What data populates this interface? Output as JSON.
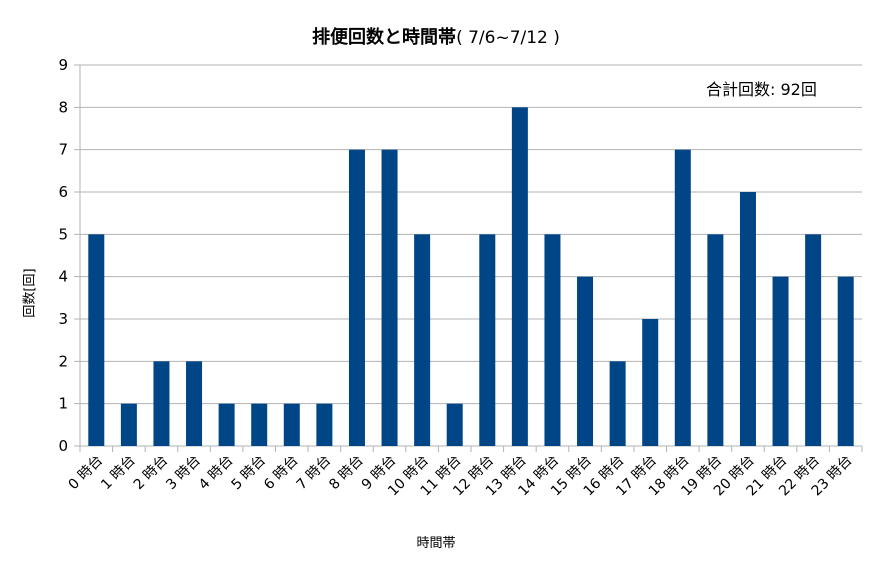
{
  "title": {
    "main": "排便回数と時間帯",
    "range": "( 7/6~7/12 )"
  },
  "annotation": "合計回数: 92回",
  "colors": {
    "bar": "#004586",
    "grid": "#b3b3b3",
    "axis": "#b3b3b3"
  },
  "chart_data": {
    "type": "bar",
    "title": "排便回数と時間帯( 7/6~7/12 )",
    "xlabel": "時間帯",
    "ylabel": "回数[回]",
    "ylim": [
      0,
      9
    ],
    "yticks": [
      0,
      1,
      2,
      3,
      4,
      5,
      6,
      7,
      8,
      9
    ],
    "grid": true,
    "categories": [
      "0 時台",
      "1 時台",
      "2 時台",
      "3 時台",
      "4 時台",
      "5 時台",
      "6 時台",
      "7 時台",
      "8 時台",
      "9 時台",
      "10 時台",
      "11 時台",
      "12 時台",
      "13 時台",
      "14 時台",
      "15 時台",
      "16 時台",
      "17 時台",
      "18 時台",
      "19 時台",
      "20 時台",
      "21 時台",
      "22 時台",
      "23 時台"
    ],
    "values": [
      5,
      1,
      2,
      2,
      1,
      1,
      1,
      1,
      7,
      7,
      5,
      1,
      5,
      8,
      5,
      4,
      2,
      3,
      7,
      5,
      6,
      4,
      5,
      4
    ]
  }
}
